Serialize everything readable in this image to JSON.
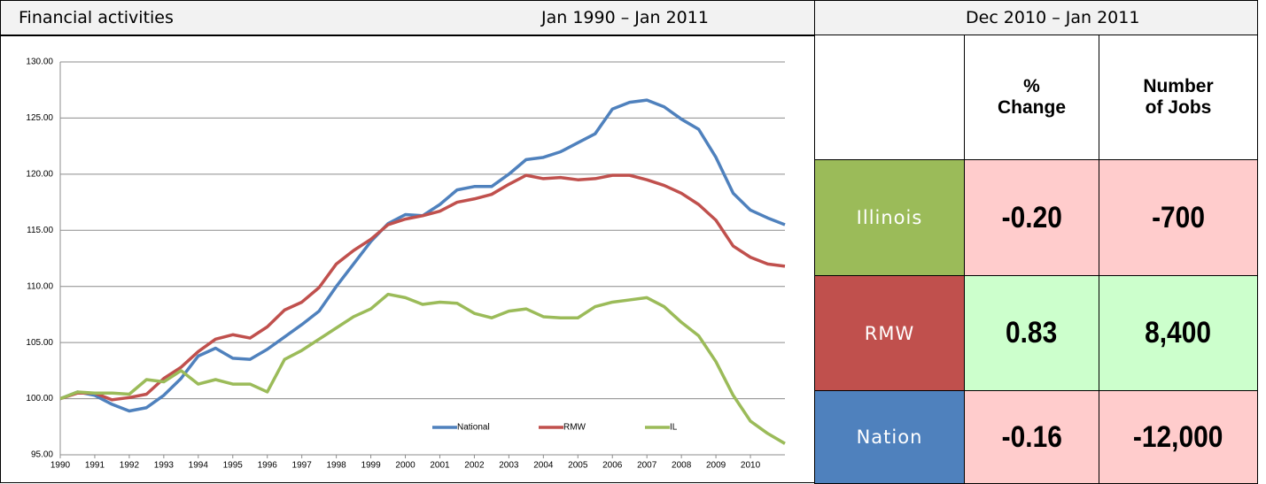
{
  "header": {
    "title": "Financial activities",
    "period": "Jan 1990 – Jan 2011"
  },
  "chart_data": {
    "type": "line",
    "x": [
      1990,
      1990.5,
      1991,
      1991.5,
      1992,
      1992.5,
      1993,
      1993.5,
      1994,
      1994.5,
      1995,
      1995.5,
      1996,
      1996.5,
      1997,
      1997.5,
      1998,
      1998.5,
      1999,
      1999.5,
      2000,
      2000.5,
      2001,
      2001.5,
      2002,
      2002.5,
      2003,
      2003.5,
      2004,
      2004.5,
      2005,
      2005.5,
      2006,
      2006.5,
      2007,
      2007.5,
      2008,
      2008.5,
      2009,
      2009.5,
      2010,
      2010.5,
      2011
    ],
    "series": [
      {
        "name": "National",
        "color": "#4f81bd",
        "values": [
          100,
          100.6,
          100.3,
          99.5,
          98.9,
          99.2,
          100.3,
          101.8,
          103.8,
          104.5,
          103.6,
          103.5,
          104.4,
          105.5,
          106.6,
          107.8,
          110.0,
          112.0,
          114.0,
          115.6,
          116.4,
          116.3,
          117.3,
          118.6,
          118.9,
          118.9,
          120.0,
          121.3,
          121.5,
          122.0,
          122.8,
          123.6,
          125.8,
          126.4,
          126.6,
          126.0,
          124.9,
          124.0,
          121.5,
          118.3,
          116.8,
          116.1,
          115.5
        ]
      },
      {
        "name": "RMW",
        "color": "#c0504d",
        "values": [
          100,
          100.5,
          100.5,
          99.9,
          100.1,
          100.4,
          101.8,
          102.8,
          104.2,
          105.3,
          105.7,
          105.4,
          106.4,
          107.9,
          108.6,
          109.9,
          112.0,
          113.2,
          114.2,
          115.5,
          116.0,
          116.3,
          116.7,
          117.5,
          117.8,
          118.2,
          119.1,
          119.9,
          119.6,
          119.7,
          119.5,
          119.6,
          119.9,
          119.9,
          119.5,
          119.0,
          118.3,
          117.3,
          115.9,
          113.6,
          112.6,
          112.0,
          111.8
        ]
      },
      {
        "name": "IL",
        "color": "#9bbb59",
        "values": [
          100,
          100.6,
          100.5,
          100.5,
          100.4,
          101.7,
          101.5,
          102.5,
          101.3,
          101.7,
          101.3,
          101.3,
          100.6,
          103.5,
          104.3,
          105.3,
          106.3,
          107.3,
          108.0,
          109.3,
          109.0,
          108.4,
          108.6,
          108.5,
          107.6,
          107.2,
          107.8,
          108.0,
          107.3,
          107.2,
          107.2,
          108.2,
          108.6,
          108.8,
          109.0,
          108.2,
          106.8,
          105.6,
          103.3,
          100.3,
          98.0,
          96.9,
          96.0
        ]
      }
    ],
    "xlim": [
      1990,
      2011
    ],
    "xticks": [
      1990,
      1991,
      1992,
      1993,
      1994,
      1995,
      1996,
      1997,
      1998,
      1999,
      2000,
      2001,
      2002,
      2003,
      2004,
      2005,
      2006,
      2007,
      2008,
      2009,
      2010
    ],
    "ylim": [
      95,
      130
    ],
    "yticks": [
      {
        "value": 95,
        "label": "95.00"
      },
      {
        "value": 100,
        "label": "100.00"
      },
      {
        "value": 105,
        "label": "105.00"
      },
      {
        "value": 110,
        "label": "110.00"
      },
      {
        "value": 115,
        "label": "115.00"
      },
      {
        "value": 120,
        "label": "120.00"
      },
      {
        "value": 125,
        "label": "125.00"
      },
      {
        "value": 130,
        "label": "130.00"
      }
    ],
    "grid": true,
    "legend": "bottom"
  },
  "table": {
    "period": "Dec 2010 – Jan 2011",
    "columns": [
      "% Change",
      "Number of Jobs"
    ],
    "rows": [
      {
        "label": "Illinois",
        "pct_change": "-0.20",
        "jobs": "-700"
      },
      {
        "label": "RMW",
        "pct_change": "0.83",
        "jobs": "8,400"
      },
      {
        "label": "Nation",
        "pct_change": "-0.16",
        "jobs": "-12,000"
      }
    ]
  }
}
